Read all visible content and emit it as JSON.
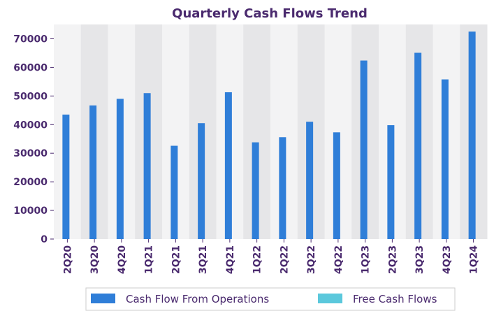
{
  "chart_data": {
    "type": "bar",
    "title": "Quarterly Cash Flows Trend",
    "xlabel": "",
    "ylabel": "",
    "categories": [
      "2Q20",
      "3Q20",
      "4Q20",
      "1Q21",
      "2Q21",
      "3Q21",
      "4Q21",
      "1Q22",
      "2Q22",
      "3Q22",
      "4Q22",
      "1Q23",
      "2Q23",
      "3Q23",
      "4Q23",
      "1Q24"
    ],
    "series": [
      {
        "name": "Cash Flow From Operations",
        "color": "#2f7ed8",
        "values": [
          43500,
          46700,
          49000,
          51000,
          32600,
          40500,
          51300,
          33800,
          35600,
          41000,
          37300,
          62400,
          39800,
          65100,
          55800,
          72500
        ]
      },
      {
        "name": "Free Cash Flows",
        "color": "#5bc8dc",
        "values": [
          null,
          null,
          null,
          null,
          null,
          null,
          null,
          null,
          null,
          null,
          null,
          null,
          null,
          null,
          null,
          null
        ]
      }
    ],
    "ylim": [
      0,
      75000
    ],
    "yticks": [
      0,
      10000,
      20000,
      30000,
      40000,
      50000,
      60000,
      70000
    ],
    "ytick_labels": [
      "0",
      "10000",
      "20000",
      "30000",
      "40000",
      "50000",
      "60000",
      "70000"
    ],
    "grid": false,
    "legend": "bottom-center",
    "band_colors": [
      "#f3f3f4",
      "#e6e6e8"
    ]
  }
}
